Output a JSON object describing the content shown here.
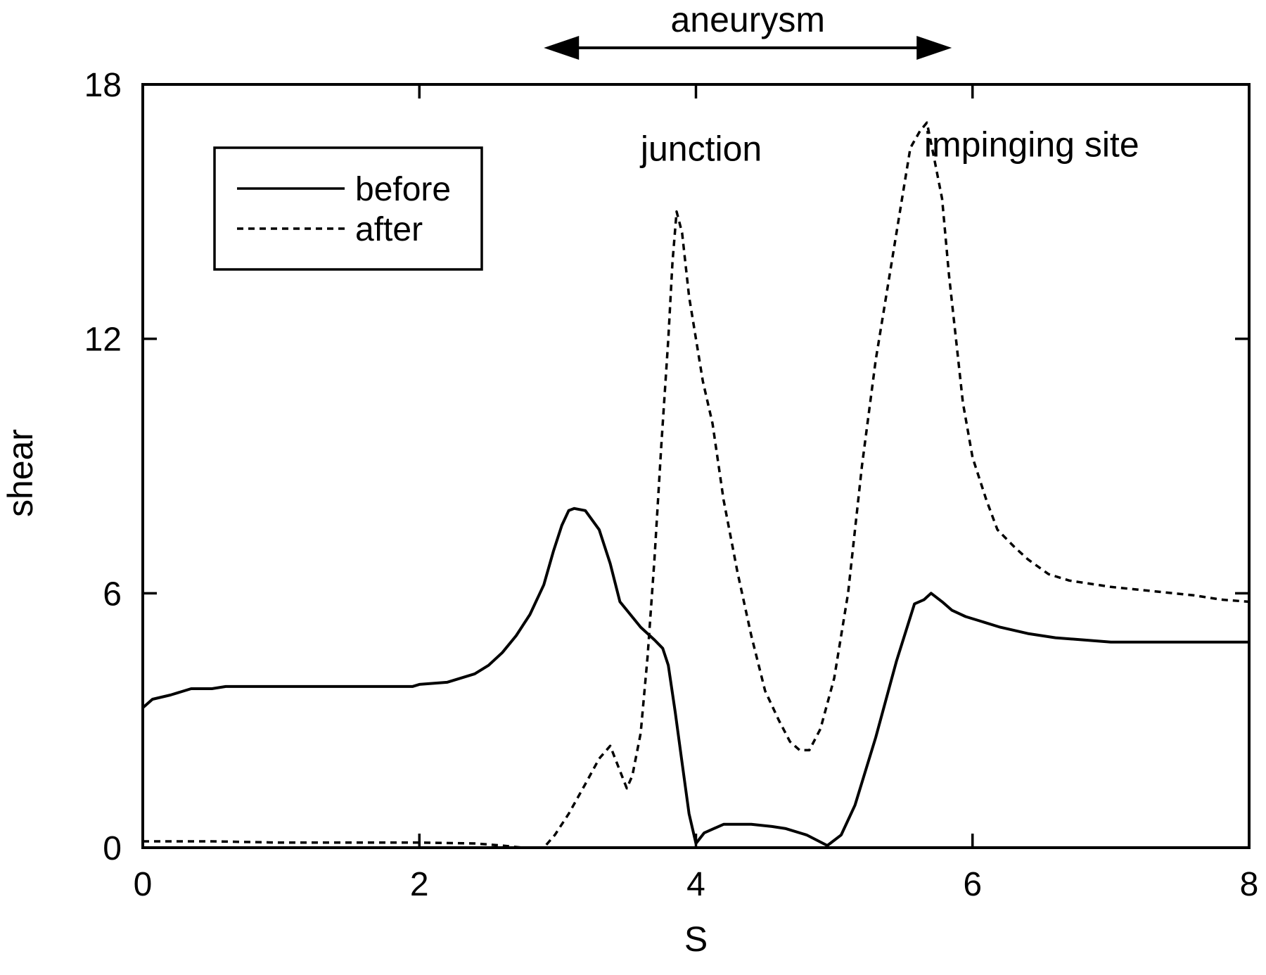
{
  "chart_data": {
    "type": "line",
    "title": "",
    "xlabel": "S",
    "ylabel": "shear",
    "xlim": [
      0,
      8
    ],
    "ylim": [
      0,
      18
    ],
    "xticks": [
      0,
      2,
      4,
      6,
      8
    ],
    "yticks": [
      0,
      6,
      12,
      18
    ],
    "grid": false,
    "legend": {
      "position": "top-left",
      "entries": [
        {
          "name": "before",
          "style": "solid"
        },
        {
          "name": "after",
          "style": "dashed"
        }
      ]
    },
    "annotations": [
      {
        "text": "aneurysm",
        "kind": "range-arrow",
        "x_from": 2.9,
        "x_to": 5.85
      },
      {
        "text": "junction",
        "x": 3.6,
        "y": 16.2
      },
      {
        "text": "impinging site",
        "x": 5.65,
        "y": 16.3
      }
    ],
    "series": [
      {
        "name": "before",
        "style": "solid",
        "color": "#000000",
        "points": [
          [
            0.0,
            3.3
          ],
          [
            0.07,
            3.5
          ],
          [
            0.2,
            3.6
          ],
          [
            0.35,
            3.75
          ],
          [
            0.5,
            3.75
          ],
          [
            0.6,
            3.8
          ],
          [
            1.0,
            3.8
          ],
          [
            1.5,
            3.8
          ],
          [
            1.95,
            3.8
          ],
          [
            2.0,
            3.85
          ],
          [
            2.2,
            3.9
          ],
          [
            2.4,
            4.1
          ],
          [
            2.5,
            4.3
          ],
          [
            2.6,
            4.6
          ],
          [
            2.7,
            5.0
          ],
          [
            2.8,
            5.5
          ],
          [
            2.9,
            6.2
          ],
          [
            2.97,
            7.0
          ],
          [
            3.03,
            7.6
          ],
          [
            3.08,
            7.95
          ],
          [
            3.12,
            8.0
          ],
          [
            3.2,
            7.95
          ],
          [
            3.3,
            7.5
          ],
          [
            3.38,
            6.7
          ],
          [
            3.45,
            5.8
          ],
          [
            3.5,
            5.6
          ],
          [
            3.6,
            5.2
          ],
          [
            3.7,
            4.9
          ],
          [
            3.76,
            4.7
          ],
          [
            3.8,
            4.3
          ],
          [
            3.85,
            3.2
          ],
          [
            3.9,
            2.0
          ],
          [
            3.95,
            0.8
          ],
          [
            4.0,
            0.1
          ],
          [
            4.06,
            0.35
          ],
          [
            4.2,
            0.55
          ],
          [
            4.4,
            0.55
          ],
          [
            4.55,
            0.5
          ],
          [
            4.65,
            0.45
          ],
          [
            4.8,
            0.3
          ],
          [
            4.95,
            0.05
          ],
          [
            5.05,
            0.3
          ],
          [
            5.15,
            1.0
          ],
          [
            5.3,
            2.6
          ],
          [
            5.45,
            4.4
          ],
          [
            5.58,
            5.75
          ],
          [
            5.65,
            5.85
          ],
          [
            5.7,
            6.0
          ],
          [
            5.78,
            5.8
          ],
          [
            5.85,
            5.6
          ],
          [
            5.95,
            5.45
          ],
          [
            6.05,
            5.35
          ],
          [
            6.2,
            5.2
          ],
          [
            6.4,
            5.05
          ],
          [
            6.6,
            4.95
          ],
          [
            6.8,
            4.9
          ],
          [
            7.0,
            4.85
          ],
          [
            7.3,
            4.85
          ],
          [
            7.6,
            4.85
          ],
          [
            8.0,
            4.85
          ]
        ]
      },
      {
        "name": "after",
        "style": "dashed",
        "color": "#000000",
        "points": [
          [
            0.0,
            0.15
          ],
          [
            0.5,
            0.15
          ],
          [
            1.0,
            0.12
          ],
          [
            1.5,
            0.12
          ],
          [
            2.0,
            0.12
          ],
          [
            2.4,
            0.1
          ],
          [
            2.6,
            0.05
          ],
          [
            2.75,
            0.0
          ],
          [
            2.9,
            0.0
          ],
          [
            2.98,
            0.3
          ],
          [
            3.08,
            0.8
          ],
          [
            3.2,
            1.5
          ],
          [
            3.3,
            2.1
          ],
          [
            3.38,
            2.4
          ],
          [
            3.44,
            1.9
          ],
          [
            3.5,
            1.4
          ],
          [
            3.54,
            1.7
          ],
          [
            3.6,
            2.7
          ],
          [
            3.65,
            4.5
          ],
          [
            3.7,
            6.8
          ],
          [
            3.75,
            9.5
          ],
          [
            3.8,
            12.0
          ],
          [
            3.83,
            13.8
          ],
          [
            3.86,
            15.0
          ],
          [
            3.9,
            14.5
          ],
          [
            3.95,
            13.0
          ],
          [
            4.05,
            11.0
          ],
          [
            4.12,
            10.0
          ],
          [
            4.2,
            8.2
          ],
          [
            4.3,
            6.5
          ],
          [
            4.4,
            5.0
          ],
          [
            4.5,
            3.7
          ],
          [
            4.6,
            3.0
          ],
          [
            4.68,
            2.5
          ],
          [
            4.75,
            2.3
          ],
          [
            4.82,
            2.3
          ],
          [
            4.9,
            2.8
          ],
          [
            5.0,
            4.0
          ],
          [
            5.1,
            6.0
          ],
          [
            5.2,
            9.0
          ],
          [
            5.3,
            11.5
          ],
          [
            5.4,
            13.5
          ],
          [
            5.48,
            15.1
          ],
          [
            5.55,
            16.5
          ],
          [
            5.62,
            16.9
          ],
          [
            5.67,
            17.1
          ],
          [
            5.72,
            16.3
          ],
          [
            5.78,
            15.3
          ],
          [
            5.83,
            13.5
          ],
          [
            5.88,
            12.0
          ],
          [
            5.93,
            10.5
          ],
          [
            6.0,
            9.2
          ],
          [
            6.1,
            8.2
          ],
          [
            6.18,
            7.5
          ],
          [
            6.3,
            7.1
          ],
          [
            6.4,
            6.8
          ],
          [
            6.55,
            6.45
          ],
          [
            6.7,
            6.3
          ],
          [
            7.0,
            6.15
          ],
          [
            7.3,
            6.05
          ],
          [
            7.6,
            5.95
          ],
          [
            7.8,
            5.85
          ],
          [
            8.0,
            5.8
          ]
        ]
      }
    ]
  }
}
